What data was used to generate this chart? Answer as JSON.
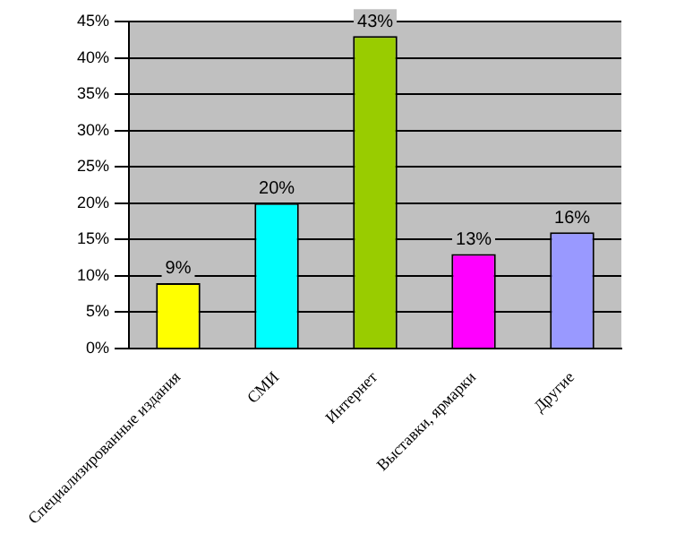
{
  "chart_data": {
    "type": "bar",
    "categories": [
      "Специализированные издания",
      "СМИ",
      "Интернет",
      "Выставки, ярмарки",
      "Другие"
    ],
    "values": [
      9,
      20,
      43,
      13,
      16
    ],
    "colors": [
      "#ffff00",
      "#00ffff",
      "#99cc00",
      "#ff00ff",
      "#9999ff"
    ],
    "value_labels": [
      "9%",
      "20%",
      "43%",
      "13%",
      "16%"
    ],
    "ylim": [
      0,
      45
    ],
    "yticks": [
      {
        "value": 0,
        "label": "0%"
      },
      {
        "value": 5,
        "label": "5%"
      },
      {
        "value": 10,
        "label": "10%"
      },
      {
        "value": 15,
        "label": "15%"
      },
      {
        "value": 20,
        "label": "20%"
      },
      {
        "value": 25,
        "label": "25%"
      },
      {
        "value": 30,
        "label": "30%"
      },
      {
        "value": 35,
        "label": "35%"
      },
      {
        "value": 40,
        "label": "40%"
      },
      {
        "value": 45,
        "label": "45%"
      }
    ],
    "grid": "y",
    "legend": false
  }
}
